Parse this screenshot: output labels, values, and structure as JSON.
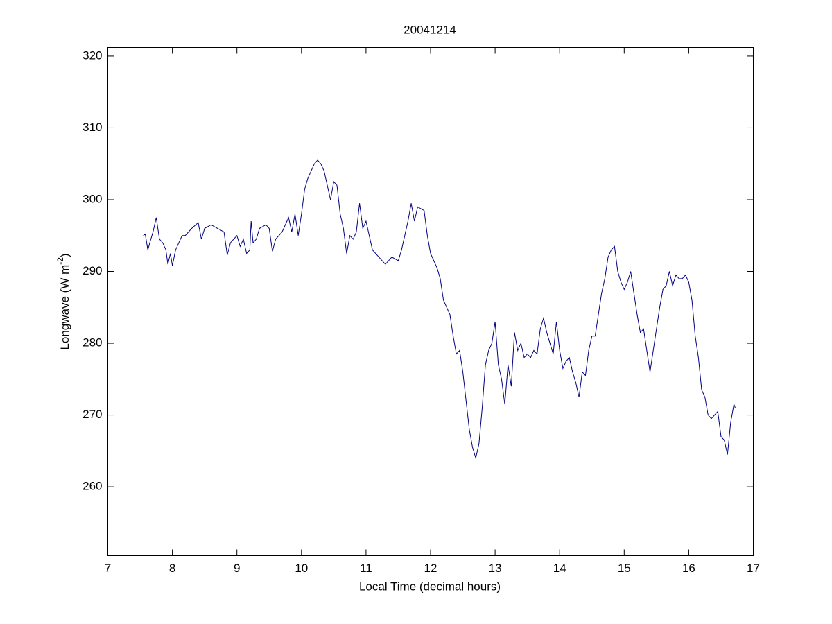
{
  "chart_data": {
    "type": "line",
    "title": "20041214",
    "xlabel": "Local Time (decimal hours)",
    "ylabel": [
      "Longwave (W m",
      "-2",
      ")"
    ],
    "xlim": [
      7,
      17
    ],
    "xticks": [
      7,
      8,
      9,
      10,
      11,
      12,
      13,
      14,
      15,
      16,
      17
    ],
    "ylim": [
      250.4,
      321.2
    ],
    "yticks": [
      260,
      270,
      280,
      290,
      300,
      310,
      320
    ],
    "grid": false,
    "series": [
      {
        "color": "#00007f",
        "x": [
          7.55,
          7.58,
          7.62,
          7.65,
          7.7,
          7.75,
          7.8,
          7.85,
          7.9,
          7.93,
          7.97,
          8.0,
          8.05,
          8.1,
          8.15,
          8.2,
          8.3,
          8.4,
          8.45,
          8.5,
          8.6,
          8.7,
          8.8,
          8.85,
          8.9,
          9.0,
          9.05,
          9.1,
          9.15,
          9.2,
          9.22,
          9.25,
          9.3,
          9.35,
          9.45,
          9.5,
          9.55,
          9.6,
          9.7,
          9.8,
          9.85,
          9.9,
          9.95,
          10.0,
          10.05,
          10.1,
          10.15,
          10.2,
          10.25,
          10.3,
          10.35,
          10.4,
          10.45,
          10.5,
          10.55,
          10.6,
          10.65,
          10.7,
          10.75,
          10.8,
          10.85,
          10.9,
          10.95,
          11.0,
          11.1,
          11.2,
          11.3,
          11.4,
          11.5,
          11.55,
          11.6,
          11.65,
          11.7,
          11.75,
          11.8,
          11.9,
          11.95,
          12.0,
          12.1,
          12.15,
          12.2,
          12.3,
          12.35,
          12.4,
          12.45,
          12.5,
          12.55,
          12.6,
          12.65,
          12.7,
          12.75,
          12.8,
          12.85,
          12.9,
          12.95,
          13.0,
          13.05,
          13.1,
          13.15,
          13.2,
          13.25,
          13.3,
          13.35,
          13.4,
          13.45,
          13.5,
          13.55,
          13.6,
          13.65,
          13.7,
          13.75,
          13.8,
          13.85,
          13.9,
          13.95,
          14.0,
          14.05,
          14.1,
          14.15,
          14.2,
          14.25,
          14.3,
          14.35,
          14.4,
          14.45,
          14.5,
          14.55,
          14.6,
          14.65,
          14.7,
          14.75,
          14.8,
          14.85,
          14.9,
          14.95,
          15.0,
          15.05,
          15.1,
          15.15,
          15.2,
          15.25,
          15.3,
          15.35,
          15.4,
          15.45,
          15.5,
          15.55,
          15.6,
          15.65,
          15.7,
          15.75,
          15.8,
          15.85,
          15.9,
          15.95,
          16.0,
          16.05,
          16.1,
          16.15,
          16.2,
          16.25,
          16.3,
          16.35,
          16.4,
          16.45,
          16.5,
          16.55,
          16.6,
          16.65,
          16.7,
          16.72
        ],
        "values": [
          295,
          295.2,
          293,
          294,
          295.5,
          297.5,
          294.5,
          294,
          293,
          291,
          292.5,
          290.8,
          293,
          294,
          295,
          295,
          296,
          296.8,
          294.5,
          296,
          296.5,
          296,
          295.5,
          292.3,
          294,
          295,
          293.5,
          294.5,
          292.5,
          293,
          297,
          294,
          294.5,
          296,
          296.5,
          296,
          292.8,
          294.5,
          295.5,
          297.5,
          295.5,
          298,
          295,
          298,
          301.5,
          303,
          304,
          305,
          305.5,
          305,
          304,
          302,
          300,
          302.5,
          302,
          298,
          296,
          292.5,
          295,
          294.5,
          295.5,
          299.5,
          296,
          297,
          293,
          292,
          291,
          292,
          291.5,
          293,
          295,
          297,
          299.5,
          297,
          299,
          298.5,
          295,
          292.5,
          290.5,
          289,
          286,
          284,
          281,
          278.5,
          279,
          276,
          272,
          268,
          265.5,
          264,
          266,
          271,
          277,
          279,
          280,
          283,
          277,
          275,
          271.5,
          277,
          274,
          281.5,
          279,
          280,
          278,
          278.5,
          278,
          279,
          278.5,
          282,
          283.5,
          281.5,
          280,
          278.5,
          283,
          279,
          276.5,
          277.5,
          278,
          276,
          274.5,
          272.5,
          276,
          275.5,
          279,
          281,
          281,
          284,
          287,
          289,
          292,
          293,
          293.5,
          290,
          288.5,
          287.5,
          288.5,
          290,
          287,
          284,
          281.5,
          282,
          279,
          276,
          279,
          282,
          285,
          287.5,
          288,
          290,
          288,
          289.5,
          289,
          289,
          289.5,
          288.5,
          286,
          281,
          278,
          273.5,
          272.5,
          270,
          269.5,
          270,
          270.5,
          267,
          266.5,
          264.5,
          269,
          271.5,
          271
        ]
      }
    ]
  }
}
